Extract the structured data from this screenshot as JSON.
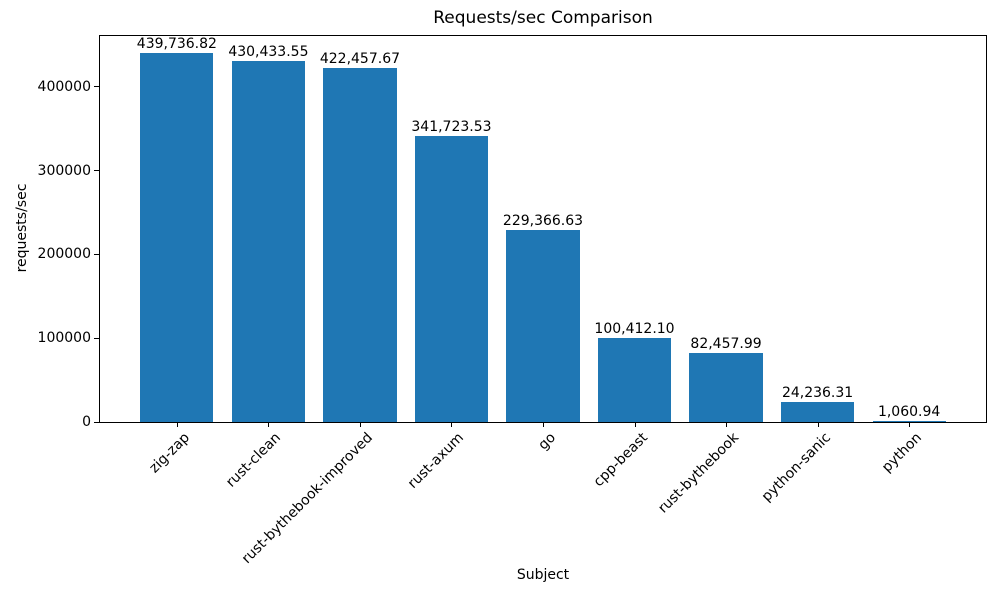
{
  "chart_data": {
    "type": "bar",
    "title": "Requests/sec Comparison",
    "xlabel": "Subject",
    "ylabel": "requests/sec",
    "categories": [
      "zig-zap",
      "rust-clean",
      "rust-bythebook-improved",
      "rust-axum",
      "go",
      "cpp-beast",
      "rust-bythebook",
      "python-sanic",
      "python"
    ],
    "values": [
      439736.82,
      430433.55,
      422457.67,
      341723.53,
      229366.63,
      100412.1,
      82457.99,
      24236.31,
      1060.94
    ],
    "value_labels": [
      "439,736.82",
      "430,433.55",
      "422,457.67",
      "341,723.53",
      "229,366.63",
      "100,412.10",
      "82,457.99",
      "24,236.31",
      "1,060.94"
    ],
    "yticks": [
      0,
      100000,
      200000,
      300000,
      400000
    ],
    "ytick_labels": [
      "0",
      "100000",
      "200000",
      "300000",
      "400000"
    ],
    "ylim": [
      0,
      461723.66
    ],
    "xtick_rotation_deg": 45,
    "bar_color": "#1f77b4",
    "text_color": "#000000",
    "grid": false,
    "legend": "none"
  }
}
